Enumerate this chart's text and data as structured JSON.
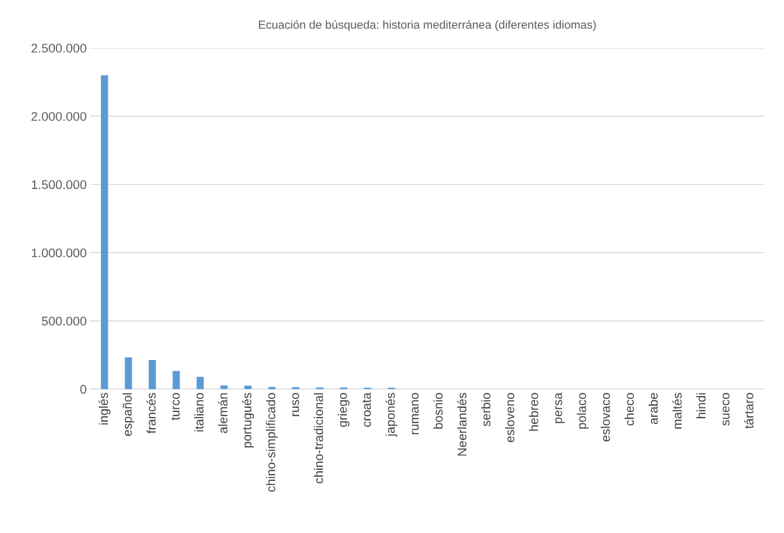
{
  "chart_data": {
    "type": "bar",
    "title": "Ecuación de búsqueda: historia mediterránea (diferentes idiomas)",
    "categories": [
      "inglés",
      "español",
      "francés",
      "turco",
      "italiano",
      "alemán",
      "portugués",
      "chino-simplificado",
      "ruso",
      "chino-tradicional",
      "griego",
      "croata",
      "japonés",
      "rumano",
      "bosnio",
      "Neerlandés",
      "serbio",
      "esloveno",
      "hebreo",
      "persa",
      "polaco",
      "eslovaco",
      "checo",
      "arabe",
      "maltés",
      "hindi",
      "sueco",
      "tártaro"
    ],
    "values": [
      2300000,
      233000,
      214000,
      133000,
      90000,
      27000,
      25000,
      16000,
      14000,
      12000,
      12000,
      10000,
      10000,
      null,
      null,
      null,
      null,
      null,
      0,
      0,
      0,
      0,
      0,
      0,
      0,
      0,
      0,
      0
    ],
    "color": "#5b9bd5",
    "ylim": [
      0,
      2500000
    ],
    "yticks": [
      {
        "value": 0,
        "label": "0"
      },
      {
        "value": 500000,
        "label": "500.000"
      },
      {
        "value": 1000000,
        "label": "1.000.000"
      },
      {
        "value": 1500000,
        "label": "1.500.000"
      },
      {
        "value": 2000000,
        "label": "2.000.000"
      },
      {
        "value": 2500000,
        "label": "2.500.000"
      }
    ],
    "grid": "y"
  }
}
